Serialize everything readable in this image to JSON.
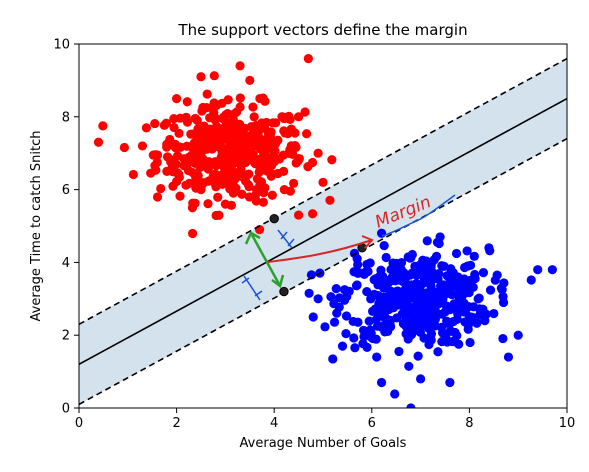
{
  "chart_data": {
    "type": "scatter",
    "title": "The support vectors define the margin",
    "xlabel": "Average Number of Goals",
    "ylabel": "Average Time to catch Snitch",
    "xlim": [
      0,
      10
    ],
    "ylim": [
      0,
      10
    ],
    "xticks": [
      "0",
      "2",
      "4",
      "6",
      "8",
      "10"
    ],
    "yticks": [
      "0",
      "2",
      "4",
      "6",
      "8",
      "10"
    ],
    "grid": false,
    "series": [
      {
        "color": "#ff0000",
        "center": [
          3.1,
          7.0
        ],
        "spread": [
          0.75,
          0.65
        ],
        "count": 420,
        "values": [
          [
            0.4,
            7.3
          ],
          [
            2.0,
            8.5
          ],
          [
            2.5,
            9.1
          ],
          [
            3.3,
            9.4
          ],
          [
            3.5,
            9.0
          ],
          [
            4.7,
            9.6
          ],
          [
            1.3,
            7.2
          ],
          [
            1.8,
            6.5
          ],
          [
            2.5,
            6.0
          ],
          [
            3.0,
            5.6
          ],
          [
            3.7,
            4.9
          ],
          [
            4.5,
            5.3
          ],
          [
            5.0,
            6.2
          ],
          [
            4.9,
            7.0
          ],
          [
            4.5,
            8.0
          ]
        ]
      },
      {
        "color": "#0000ff",
        "center": [
          6.9,
          3.0
        ],
        "spread": [
          0.75,
          0.65
        ],
        "count": 420,
        "values": [
          [
            4.9,
            3.0
          ],
          [
            4.8,
            2.5
          ],
          [
            5.4,
            1.7
          ],
          [
            6.1,
            1.4
          ],
          [
            6.2,
            0.7
          ],
          [
            7.0,
            0.8
          ],
          [
            7.6,
            0.7
          ],
          [
            8.8,
            1.4
          ],
          [
            9.4,
            3.8
          ],
          [
            9.7,
            3.8
          ],
          [
            8.4,
            4.4
          ],
          [
            7.4,
            4.7
          ],
          [
            6.2,
            4.8
          ],
          [
            5.7,
            4.1
          ],
          [
            8.7,
            2.9
          ],
          [
            9.0,
            2.0
          ],
          [
            6.8,
            0.0
          ]
        ]
      }
    ],
    "lines": [
      {
        "name": "decision boundary",
        "style": "solid",
        "color": "#000000",
        "points": [
          [
            0,
            1.2
          ],
          [
            10,
            8.5
          ]
        ]
      },
      {
        "name": "upper margin",
        "style": "dashed",
        "color": "#000000",
        "points": [
          [
            0,
            2.3
          ],
          [
            10,
            9.6
          ]
        ]
      },
      {
        "name": "lower margin",
        "style": "dashed",
        "color": "#000000",
        "points": [
          [
            0,
            0.1
          ],
          [
            10,
            7.4
          ]
        ]
      }
    ],
    "margin_band": {
      "color": "#d4e2ee"
    },
    "support_vectors": [
      [
        4.0,
        5.2
      ],
      [
        4.2,
        3.2
      ],
      [
        5.8,
        4.4
      ]
    ],
    "annotations": {
      "margin_label": "Margin",
      "arrow_color_green": "#2ca02c",
      "arrow_color_red": "#d62728",
      "hand_color_blue": "#1a55d6"
    }
  }
}
